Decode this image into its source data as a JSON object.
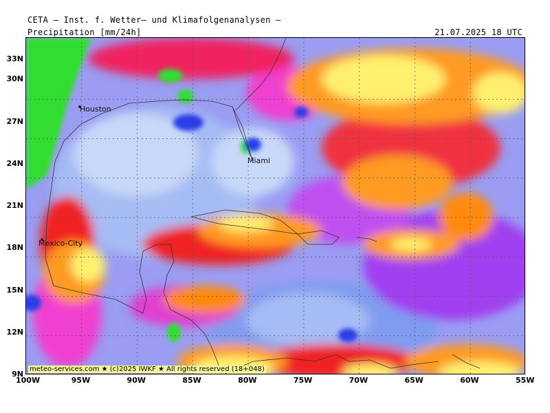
{
  "header": {
    "org": "CETA — Inst. f. Wetter— und Klimafolgenanalysen —",
    "parameter": "Precipitation [mm/24h]",
    "valid": "21.07.2025 18 UTC"
  },
  "map": {
    "lat_labels": [
      "33N",
      "30N",
      "27N",
      "24N",
      "21N",
      "18N",
      "15N",
      "12N",
      "9N"
    ],
    "lon_labels": [
      "100W",
      "95W",
      "90W",
      "85W",
      "80W",
      "75W",
      "70W",
      "65W",
      "60W",
      "55W"
    ],
    "cities": [
      "Houston",
      "Miami",
      "Mexico-City"
    ],
    "colors": {
      "green": "#33dd33",
      "blue": "#2a3ce8",
      "light_blue": "#7f9cf0",
      "pale_blue": "#c8d8f8",
      "magenta": "#f040d0",
      "purple": "#a040f0",
      "red": "#f02020",
      "orange": "#ff9a20",
      "yellow": "#fff070"
    }
  },
  "footer": {
    "credit": "meteo-services.com ★ (c)2025 IWKF ★ All rights reserved (18+048)"
  }
}
